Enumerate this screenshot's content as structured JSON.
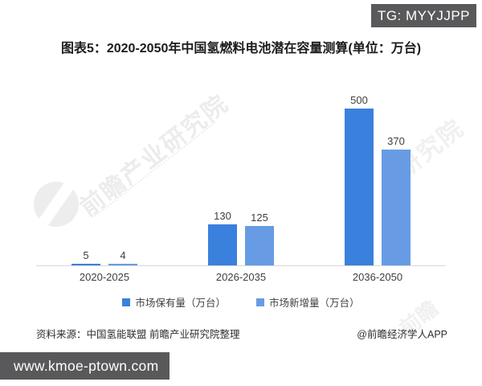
{
  "overlay": {
    "tg_badge": "TG: MYYJJPP",
    "url": "www.kmoe-ptown.com"
  },
  "title": "图表5：2020-2050年中国氢燃料电池潜在容量测算(单位：万台)",
  "chart_data": {
    "type": "bar",
    "categories": [
      "2020-2025",
      "2026-2035",
      "2036-2050"
    ],
    "series": [
      {
        "name": "市场保有量（万台）",
        "values": [
          5,
          130,
          500
        ],
        "color": "#3a80dd"
      },
      {
        "name": "市场新增量（万台）",
        "values": [
          4,
          125,
          370
        ],
        "color": "#679ce5"
      }
    ],
    "ylim": [
      0,
      500
    ],
    "unit": "万台",
    "grid": false,
    "value_labels": true,
    "legend_position": "bottom",
    "xlabel": "",
    "ylabel": ""
  },
  "footer": {
    "source": "资料来源：中国氢能联盟 前瞻产业研究院整理",
    "credit": "@前瞻经济学人APP"
  },
  "watermark": {
    "main": "前瞻产业研究院",
    "fragment_top_right": "研究院",
    "fragment_bottom": "前瞻"
  }
}
